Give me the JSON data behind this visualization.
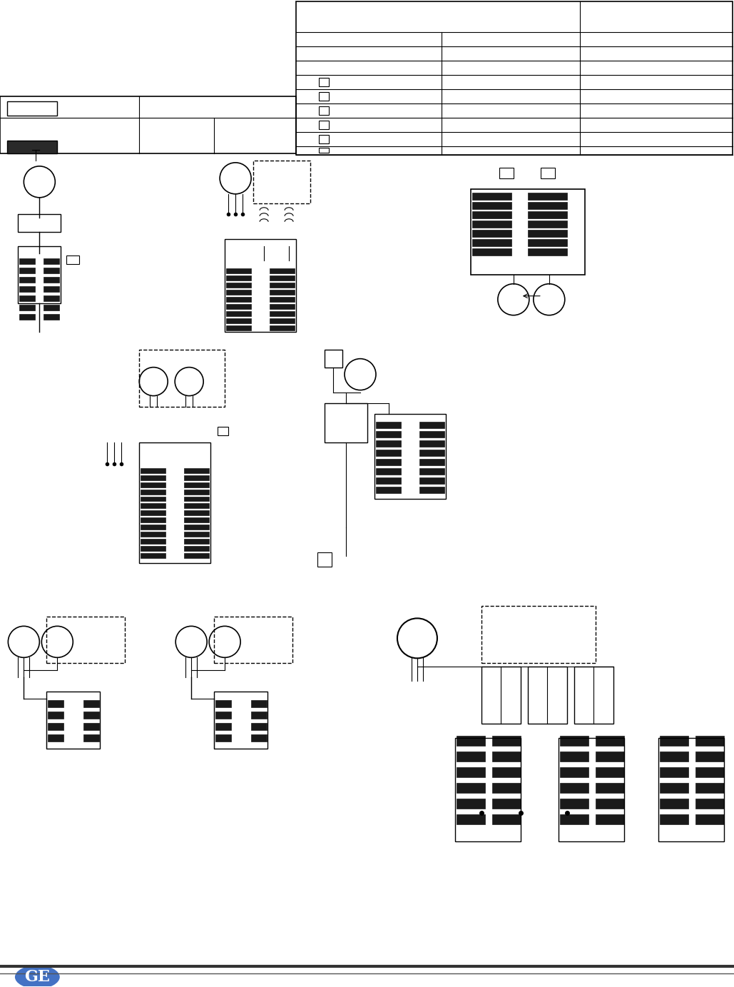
{
  "page_bg": "#ffffff",
  "border_color": "#000000",
  "table_line_color": "#000000",
  "ge_logo_color": "#4472c4",
  "bottom_bar_color": "#000000",
  "diagram_line_color": "#000000",
  "dark_breaker_color": "#1a1a1a",
  "dashed_box_color": "#000000"
}
